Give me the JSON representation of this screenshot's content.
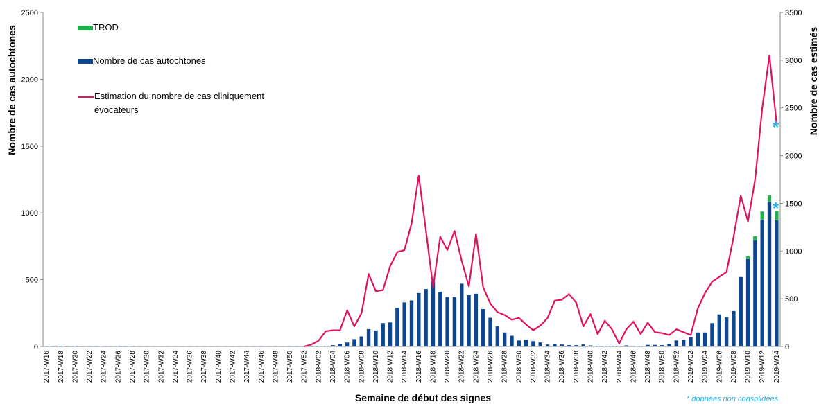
{
  "chart_data": {
    "type": "bar-line",
    "y_label": "Nombre de cas autochtones",
    "y2_label": "Nombre de cas estimés",
    "x_label": "Semaine de début des signes",
    "annotation": "* données non consolidées",
    "asterisk": "*",
    "categories": [
      "2017-W16",
      null,
      "2017-W18",
      null,
      "2017-W20",
      null,
      "2017-W22",
      null,
      "2017-W24",
      null,
      "2017-W26",
      null,
      "2017-W28",
      null,
      "2017-W30",
      null,
      "2017-W32",
      null,
      "2017-W34",
      null,
      "2017-W36",
      null,
      "2017-W38",
      null,
      "2017-W40",
      null,
      "2017-W42",
      null,
      "2017-W44",
      null,
      "2017-W46",
      null,
      "2017-W48",
      null,
      "2017-W50",
      null,
      "2017-W52",
      null,
      "2018-W02",
      null,
      "2018-W04",
      null,
      "2018-W06",
      null,
      "2018-W08",
      null,
      "2018-W10",
      null,
      "2018-W12",
      null,
      "2018-W14",
      null,
      "2018-W16",
      null,
      "2018-W18",
      null,
      "2018-W20",
      null,
      "2018-W22",
      null,
      "2018-W24",
      null,
      "2018-W26",
      null,
      "2018-W28",
      null,
      "2018-W30",
      null,
      "2018-W32",
      null,
      "2018-W34",
      null,
      "2018-W36",
      null,
      "2018-W38",
      null,
      "2018-W40",
      null,
      "2018-W42",
      null,
      "2018-W44",
      null,
      "2018-W46",
      null,
      "2018-W48",
      null,
      "2018-W50",
      null,
      "2018-W52",
      null,
      "2019-W02",
      null,
      "2019-W04",
      null,
      "2019-W06",
      null,
      "2019-W08",
      null,
      "2019-W10",
      null,
      "2019-W12",
      null,
      "2019-W14"
    ],
    "series": [
      {
        "name": "Nombre de cas autochtones",
        "type": "bar",
        "color": "#0f4690",
        "values": [
          3,
          2,
          5,
          2,
          4,
          1,
          2,
          2,
          3,
          1,
          4,
          2,
          3,
          1,
          2,
          1,
          1,
          1,
          1,
          1,
          1,
          1,
          1,
          1,
          1,
          1,
          1,
          1,
          1,
          1,
          2,
          1,
          2,
          1,
          2,
          2,
          2,
          2,
          5,
          5,
          10,
          20,
          30,
          55,
          75,
          130,
          120,
          175,
          180,
          290,
          330,
          345,
          400,
          430,
          485,
          410,
          370,
          370,
          470,
          385,
          395,
          280,
          215,
          150,
          105,
          80,
          45,
          50,
          40,
          30,
          15,
          20,
          15,
          10,
          10,
          15,
          8,
          5,
          5,
          5,
          5,
          8,
          3,
          5,
          12,
          12,
          10,
          20,
          45,
          50,
          70,
          105,
          105,
          175,
          240,
          220,
          265,
          520,
          655,
          795,
          950,
          1085,
          945
        ]
      },
      {
        "name": "TROD",
        "type": "bar",
        "color": "#1fb04b",
        "values": [
          0,
          0,
          0,
          0,
          0,
          0,
          0,
          0,
          0,
          0,
          0,
          0,
          0,
          0,
          0,
          0,
          0,
          0,
          0,
          0,
          0,
          0,
          0,
          0,
          0,
          0,
          0,
          0,
          0,
          0,
          0,
          0,
          0,
          0,
          0,
          0,
          0,
          0,
          0,
          0,
          0,
          0,
          0,
          0,
          0,
          0,
          0,
          0,
          0,
          0,
          0,
          0,
          0,
          0,
          0,
          0,
          0,
          0,
          0,
          0,
          0,
          0,
          0,
          0,
          0,
          0,
          0,
          0,
          0,
          0,
          0,
          0,
          0,
          0,
          0,
          0,
          0,
          0,
          0,
          0,
          0,
          0,
          0,
          0,
          0,
          0,
          0,
          0,
          0,
          0,
          0,
          0,
          0,
          0,
          0,
          0,
          0,
          0,
          20,
          30,
          60,
          45,
          70
        ]
      },
      {
        "name": "Estimation du nombre de cas cliniquement évocateurs",
        "type": "line",
        "axis": "y2",
        "color": "#e0115f",
        "values": [
          null,
          null,
          null,
          null,
          null,
          null,
          null,
          null,
          null,
          null,
          null,
          null,
          null,
          null,
          null,
          null,
          null,
          null,
          null,
          null,
          null,
          null,
          null,
          null,
          null,
          null,
          null,
          null,
          null,
          null,
          null,
          null,
          null,
          null,
          null,
          null,
          0,
          20,
          60,
          160,
          170,
          170,
          380,
          210,
          350,
          760,
          580,
          590,
          840,
          990,
          1010,
          1290,
          1790,
          1220,
          620,
          1150,
          1010,
          1210,
          900,
          630,
          1180,
          620,
          450,
          360,
          330,
          280,
          300,
          230,
          170,
          220,
          300,
          480,
          490,
          550,
          460,
          210,
          340,
          130,
          270,
          180,
          30,
          180,
          260,
          130,
          250,
          150,
          140,
          120,
          180,
          150,
          120,
          400,
          560,
          680,
          730,
          780,
          1150,
          1580,
          1310,
          1750,
          2500,
          3050,
          2340
        ]
      }
    ],
    "ylim": [
      0,
      2500
    ],
    "yticks": [
      0,
      500,
      1000,
      1500,
      2000,
      2500
    ],
    "y2lim": [
      0,
      3500
    ],
    "y2ticks": [
      0,
      500,
      1000,
      1500,
      2000,
      2500,
      3000,
      3500
    ],
    "asterisk_color": "#29b6e8",
    "grid": false
  }
}
